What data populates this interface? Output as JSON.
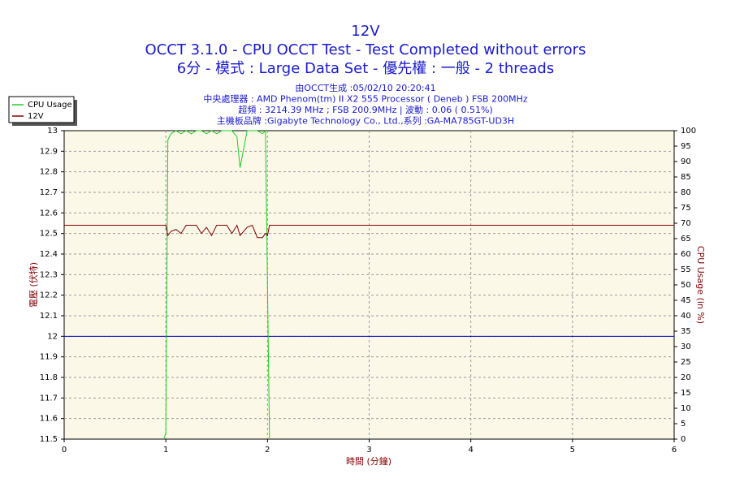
{
  "chart_data": {
    "type": "line",
    "title": "12V",
    "subtitle_lines": [
      "OCCT 3.1.0 - CPU OCCT Test - Test Completed without errors",
      "6分 - 模式 : Large Data Set - 優先權 : 一般 - 2 threads"
    ],
    "info_lines": [
      "由OCCT生成 :05/02/10 20:20:41",
      "中央處理器 : AMD Phenom(tm) II X2 555 Processor ( Deneb ) FSB 200MHz",
      "超頻 : 3214.39 MHz ; FSB 200.9MHz | 波動 : 0.06 ( 0.51%)",
      "主機板品牌 :Gigabyte Technology Co., Ltd.,系列 :GA-MA785GT-UD3H"
    ],
    "xlabel": "時間 (分鐘)",
    "ylabel": "電壓 (伏特)",
    "y2label": "CPU Usage (in %)",
    "x": [
      0,
      0.5,
      0.98,
      1.0,
      1.02,
      1.05,
      1.1,
      1.15,
      1.2,
      1.25,
      1.3,
      1.35,
      1.4,
      1.45,
      1.5,
      1.55,
      1.6,
      1.65,
      1.7,
      1.73,
      1.8,
      1.85,
      1.9,
      1.95,
      1.98,
      2.0,
      2.02,
      2.05,
      3,
      4,
      5,
      6
    ],
    "series": [
      {
        "name": "CPU Usage",
        "color": "#22cc22",
        "axis": "y2",
        "values": [
          null,
          null,
          0,
          2,
          97,
          99,
          100,
          99,
          100,
          99,
          100,
          100,
          99,
          100,
          99,
          100,
          100,
          100,
          98,
          88,
          100,
          100,
          100,
          99,
          100,
          50,
          0,
          null,
          null,
          null,
          null,
          null
        ]
      },
      {
        "name": "12V",
        "color": "#800000",
        "values": [
          12.54,
          12.54,
          12.54,
          12.54,
          12.49,
          12.51,
          12.52,
          12.5,
          12.54,
          12.54,
          12.54,
          12.5,
          12.53,
          12.49,
          12.54,
          12.54,
          12.54,
          12.5,
          12.54,
          12.49,
          12.53,
          12.54,
          12.48,
          12.48,
          12.5,
          12.49,
          12.54,
          12.54,
          12.54,
          12.54,
          12.54,
          12.54
        ]
      }
    ],
    "reference_line": {
      "value": 12,
      "color": "#0000cc"
    },
    "xlim": [
      0,
      6
    ],
    "xticks": [
      0,
      1,
      2,
      3,
      4,
      5,
      6
    ],
    "ylim": [
      11.5,
      13
    ],
    "yticks": [
      11.5,
      11.6,
      11.7,
      11.8,
      11.9,
      12,
      12.1,
      12.2,
      12.3,
      12.4,
      12.5,
      12.6,
      12.7,
      12.8,
      12.9,
      13
    ],
    "y2lim": [
      0,
      100
    ],
    "y2ticks": [
      0,
      5,
      10,
      15,
      20,
      25,
      30,
      35,
      40,
      45,
      50,
      55,
      60,
      65,
      70,
      75,
      80,
      85,
      90,
      95,
      100
    ],
    "grid": true,
    "legend": "upper-left"
  }
}
